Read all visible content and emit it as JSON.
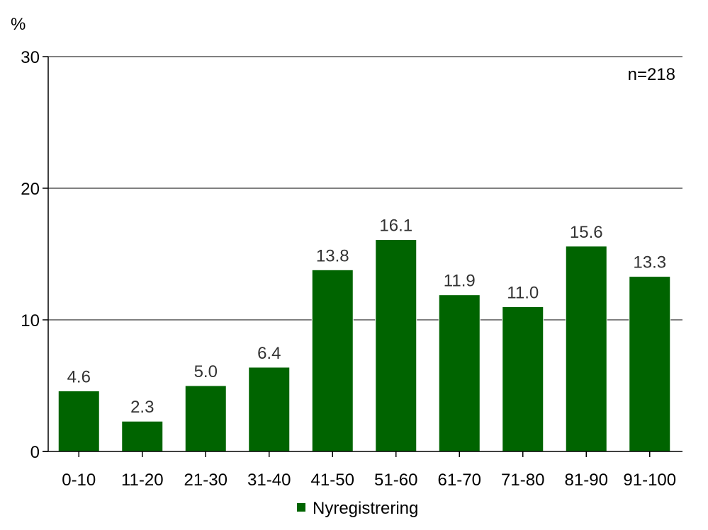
{
  "chart_data": {
    "type": "bar",
    "ylabel": "%",
    "ylim": [
      0,
      30
    ],
    "yticks": [
      "0",
      "10",
      "20",
      "30"
    ],
    "ytick_values": [
      0,
      10,
      20,
      30
    ],
    "grid": true,
    "annotation": "n=218",
    "legend_position": "bottom",
    "categories": [
      "0-10",
      "11-20",
      "21-30",
      "31-40",
      "41-50",
      "51-60",
      "61-70",
      "71-80",
      "81-90",
      "91-100"
    ],
    "series": [
      {
        "name": "Nyregistrering",
        "color": "#006400",
        "values": [
          4.6,
          2.3,
          5.0,
          6.4,
          13.8,
          16.1,
          11.9,
          11.0,
          15.6,
          13.3
        ],
        "labels": [
          "4.6",
          "2.3",
          "5.0",
          "6.4",
          "13.8",
          "16.1",
          "11.9",
          "11.0",
          "15.6",
          "13.3"
        ]
      }
    ]
  }
}
